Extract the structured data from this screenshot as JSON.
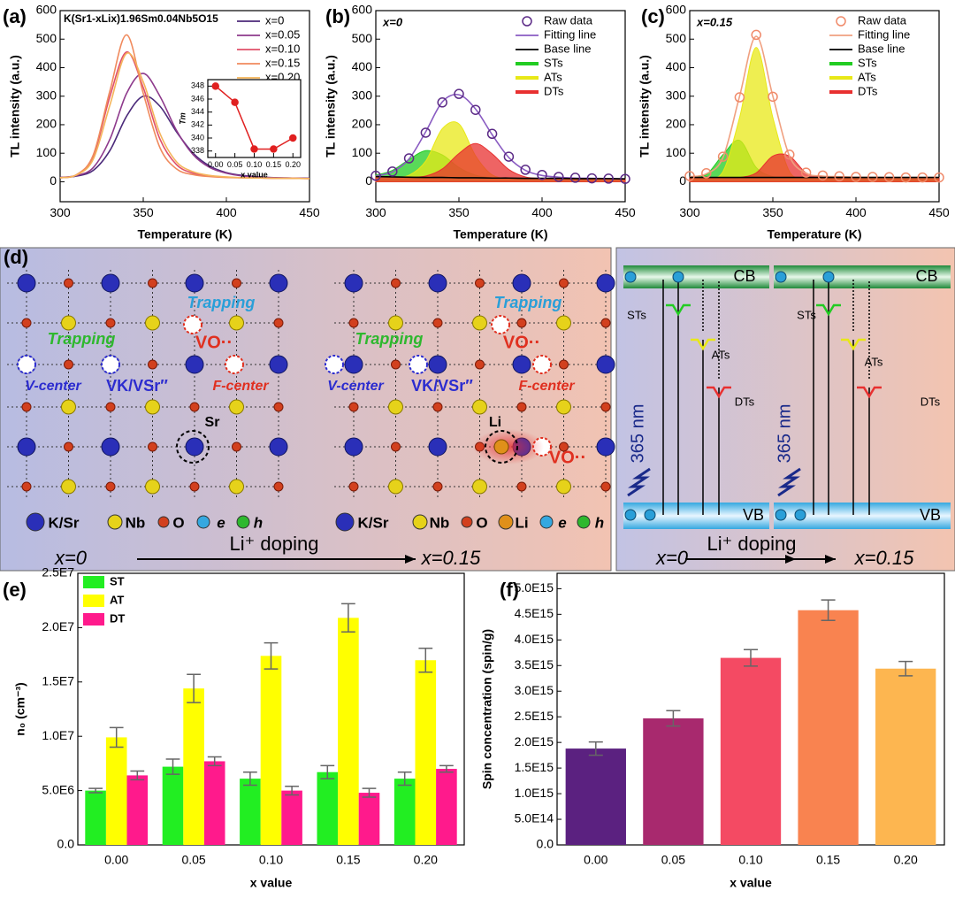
{
  "chart_data": [
    {
      "type": "line",
      "panel": "(a)",
      "title": "K(Sr1-xLix)1.96Sm0.04Nb5O15",
      "x_label": "Temperature (K)",
      "y_label": "TL intensity (a.u.)",
      "x": [
        300,
        310,
        320,
        330,
        340,
        350,
        360,
        370,
        380,
        390,
        400,
        410,
        420,
        430,
        440,
        450
      ],
      "xlim": [
        300,
        450
      ],
      "xticks": [
        300,
        350,
        400,
        450
      ],
      "ylim": [
        -70,
        600
      ],
      "yticks": [
        0,
        100,
        200,
        300,
        400,
        500,
        600
      ],
      "legend": "upper right",
      "series": [
        {
          "name": "x=0",
          "color": "#4b2a7a",
          "values": [
            15,
            20,
            40,
            110,
            230,
            300,
            265,
            175,
            100,
            55,
            32,
            22,
            17,
            14,
            13,
            12
          ]
        },
        {
          "name": "x=0.05",
          "color": "#8e3a8c",
          "values": [
            15,
            22,
            50,
            150,
            310,
            380,
            300,
            180,
            95,
            50,
            30,
            20,
            16,
            14,
            13,
            12
          ]
        },
        {
          "name": "x=0.10",
          "color": "#e0506a",
          "values": [
            14,
            25,
            90,
            300,
            455,
            330,
            150,
            60,
            30,
            20,
            16,
            14,
            13,
            12,
            12,
            11
          ]
        },
        {
          "name": "x=0.15",
          "color": "#f08a5d",
          "values": [
            14,
            25,
            95,
            320,
            515,
            310,
            120,
            45,
            25,
            18,
            15,
            14,
            13,
            12,
            12,
            11
          ]
        },
        {
          "name": "x=0.20",
          "color": "#f5b45a",
          "values": [
            14,
            24,
            80,
            270,
            450,
            350,
            170,
            70,
            35,
            22,
            17,
            14,
            13,
            12,
            12,
            11
          ]
        }
      ],
      "inset": {
        "type": "line",
        "x_label": "x value",
        "y_label": "Tm",
        "x": [
          0,
          0.05,
          0.1,
          0.15,
          0.2
        ],
        "xlim": [
          -0.02,
          0.22
        ],
        "xticks": [
          {
            "value": 0,
            "label": "0.00"
          },
          {
            "value": 0.05,
            "label": "0.05"
          },
          {
            "value": 0.1,
            "label": "0.10"
          },
          {
            "value": 0.15,
            "label": "0.15"
          },
          {
            "value": 0.2,
            "label": "0.20"
          }
        ],
        "ylim": [
          337,
          349
        ],
        "yticks": [
          338,
          340,
          342,
          344,
          346,
          348
        ],
        "series": [
          {
            "color": "#e02020",
            "marker": "circle-filled",
            "values": [
              348,
              345.5,
              338.3,
              338.3,
              340
            ]
          }
        ]
      }
    },
    {
      "type": "line",
      "panel": "(b)",
      "annotation": "x=0",
      "x_label": "Temperature (K)",
      "y_label": "TL intensity (a.u.)",
      "x": [
        300,
        310,
        320,
        330,
        340,
        350,
        360,
        370,
        380,
        390,
        400,
        410,
        420,
        430,
        440,
        450
      ],
      "xlim": [
        300,
        450
      ],
      "xticks": [
        300,
        350,
        400,
        450
      ],
      "ylim": [
        -70,
        600
      ],
      "yticks": [
        0,
        100,
        200,
        300,
        400,
        500,
        600
      ],
      "legend": "upper right",
      "series": [
        {
          "name": "Raw data",
          "color": "#5b2a86",
          "marker": "circle-open",
          "values": [
            21,
            36,
            82,
            172,
            278,
            308,
            252,
            168,
            88,
            42,
            24,
            17,
            14,
            12,
            11,
            10
          ]
        },
        {
          "name": "Fitting line",
          "color": "#8a5cc2",
          "values": [
            20,
            35,
            80,
            175,
            280,
            305,
            255,
            165,
            85,
            40,
            22,
            16,
            13,
            12,
            11,
            10
          ]
        },
        {
          "name": "Base line",
          "color": "#000000",
          "values": [
            18,
            17,
            16,
            15,
            15,
            14,
            14,
            13,
            13,
            12,
            12,
            12,
            11,
            11,
            11,
            10
          ]
        },
        {
          "name": "STs",
          "color": "#22cc22",
          "fill": true,
          "values": [
            23,
            40,
            78,
            109,
            94,
            50,
            23,
            14,
            13,
            12,
            12,
            12,
            11,
            11,
            11,
            10
          ]
        },
        {
          "name": "ATs",
          "color": "#e8e817",
          "fill": true,
          "values": [
            18,
            17,
            23,
            72,
            186,
            203,
            91,
            24,
            13,
            12,
            12,
            12,
            11,
            11,
            11,
            10
          ]
        },
        {
          "name": "DTs",
          "color": "#e83030",
          "fill": true,
          "values": [
            18,
            17,
            16,
            20,
            45,
            99,
            134,
            98,
            43,
            17,
            12,
            12,
            11,
            11,
            11,
            10
          ]
        }
      ]
    },
    {
      "type": "line",
      "panel": "(c)",
      "annotation": "x=0.15",
      "x_label": "Temperature (K)",
      "y_label": "TL intensity (a.u.)",
      "x": [
        300,
        310,
        320,
        330,
        340,
        350,
        360,
        370,
        380,
        390,
        400,
        410,
        420,
        430,
        440,
        450
      ],
      "xlim": [
        300,
        450
      ],
      "xticks": [
        300,
        350,
        400,
        450
      ],
      "ylim": [
        -70,
        600
      ],
      "yticks": [
        0,
        100,
        200,
        300,
        400,
        500,
        600
      ],
      "legend": "upper right",
      "series": [
        {
          "name": "Raw data",
          "color": "#f08a6a",
          "marker": "circle-open",
          "values": [
            20,
            30,
            88,
            296,
            515,
            298,
            95,
            32,
            22,
            19,
            17,
            17,
            16,
            15,
            15,
            15
          ]
        },
        {
          "name": "Fitting line",
          "color": "#f0a080",
          "values": [
            18,
            28,
            85,
            300,
            510,
            300,
            90,
            30,
            20,
            18,
            16,
            16,
            15,
            15,
            15,
            15
          ]
        },
        {
          "name": "Base line",
          "color": "#000000",
          "values": [
            15,
            15,
            15,
            15,
            15,
            15,
            15,
            15,
            15,
            15,
            15,
            15,
            15,
            15,
            15,
            15
          ]
        },
        {
          "name": "STs",
          "color": "#22cc22",
          "fill": true,
          "values": [
            16,
            25,
            95,
            145,
            50,
            18,
            16,
            15,
            15,
            15,
            15,
            15,
            15,
            15,
            15,
            15
          ]
        },
        {
          "name": "ATs",
          "color": "#e8e817",
          "fill": true,
          "values": [
            15,
            15,
            36,
            225,
            471,
            225,
            36,
            15,
            15,
            15,
            15,
            15,
            15,
            15,
            15,
            15
          ]
        },
        {
          "name": "DTs",
          "color": "#e83030",
          "fill": true,
          "values": [
            15,
            15,
            15,
            15,
            31,
            90,
            90,
            31,
            16,
            15,
            15,
            15,
            15,
            15,
            15,
            15
          ]
        }
      ]
    },
    {
      "type": "bar",
      "panel": "(e)",
      "x_label": "x value",
      "y_label": "n₀ (cm⁻³)",
      "categories": [
        "0.00",
        "0.05",
        "0.10",
        "0.15",
        "0.20"
      ],
      "ylim": [
        0,
        25000000
      ],
      "legend": "upper left",
      "yticks": [
        {
          "value": 0,
          "label": "0.0"
        },
        {
          "value": 5000000,
          "label": "5.0E6"
        },
        {
          "value": 10000000,
          "label": "1.0E7"
        },
        {
          "value": 15000000,
          "label": "1.5E7"
        },
        {
          "value": 20000000,
          "label": "2.0E7"
        },
        {
          "value": 25000000,
          "label": "2.5E7"
        }
      ],
      "series": [
        {
          "name": "ST",
          "color": "#22ee22",
          "values": [
            5000000,
            7200000,
            6100000,
            6700000,
            6100000
          ],
          "errors": [
            200000,
            700000,
            600000,
            600000,
            600000
          ]
        },
        {
          "name": "AT",
          "color": "#ffff00",
          "values": [
            9900000,
            14400000,
            17400000,
            20900000,
            17000000
          ],
          "errors": [
            900000,
            1300000,
            1200000,
            1300000,
            1100000
          ]
        },
        {
          "name": "DT",
          "color": "#ff1a8c",
          "values": [
            6400000,
            7700000,
            5000000,
            4800000,
            7000000
          ],
          "errors": [
            400000,
            400000,
            400000,
            400000,
            300000
          ]
        }
      ]
    },
    {
      "type": "bar",
      "panel": "(f)",
      "x_label": "x value",
      "y_label": "Spin concentration (spin/g)",
      "categories": [
        "0.00",
        "0.05",
        "0.10",
        "0.15",
        "0.20"
      ],
      "ylim": [
        0,
        5300000000000000.0
      ],
      "yticks": [
        {
          "value": 0,
          "label": "0.0"
        },
        {
          "value": 500000000000000.0,
          "label": "5.0E14"
        },
        {
          "value": 1000000000000000.0,
          "label": "1.0E15"
        },
        {
          "value": 1500000000000000.0,
          "label": "1.5E15"
        },
        {
          "value": 2000000000000000.0,
          "label": "2.0E15"
        },
        {
          "value": 2500000000000000.0,
          "label": "2.5E15"
        },
        {
          "value": 3000000000000000.0,
          "label": "3.0E15"
        },
        {
          "value": 3500000000000000.0,
          "label": "3.5E15"
        },
        {
          "value": 4000000000000000.0,
          "label": "4.0E15"
        },
        {
          "value": 4500000000000000.0,
          "label": "4.5E15"
        },
        {
          "value": 5000000000000000.0,
          "label": "5.0E15"
        }
      ],
      "values": [
        1880000000000000.0,
        2470000000000000.0,
        3650000000000000.0,
        4580000000000000.0,
        3440000000000000.0
      ],
      "errors": [
        130000000000000.0,
        150000000000000.0,
        160000000000000.0,
        200000000000000.0,
        140000000000000.0
      ],
      "colors": [
        "#5b2180",
        "#a8296e",
        "#f44a63",
        "#f98350",
        "#fdb650"
      ]
    }
  ],
  "diagram": {
    "label": "(d)",
    "texts": [
      "Trapping",
      "Trapping",
      "VO··",
      "V-center",
      "VK/VSr″",
      "F-center",
      "Sr",
      "Trapping",
      "Trapping",
      "VO··",
      "V-center",
      "VK/VSr″",
      "F-center",
      "Li",
      "VO··",
      "K/Sr",
      "Nb",
      "O",
      "e",
      "h",
      "K/Sr",
      "Nb",
      "O",
      "Li",
      "e",
      "h",
      "x=0",
      "Li⁺ doping",
      "x=0.15",
      "CB",
      "STs",
      "ATs",
      "DTs",
      "365 nm",
      "VB",
      "CB",
      "STs",
      "ATs",
      "DTs",
      "365 nm",
      "VB",
      "x=0",
      "Li⁺ doping",
      "x=0.15"
    ]
  }
}
